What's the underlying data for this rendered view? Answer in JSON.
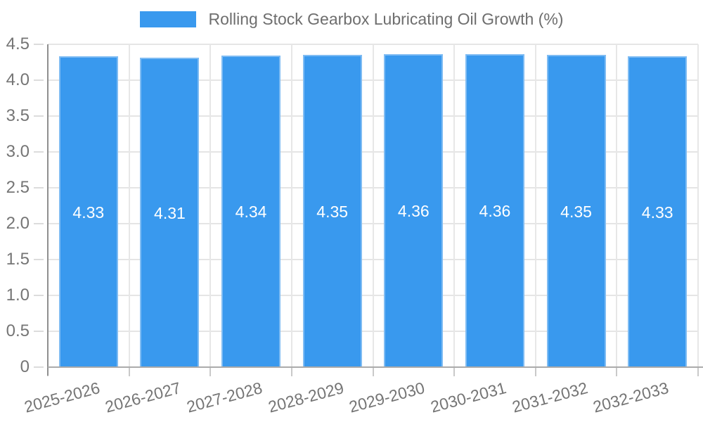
{
  "legend": {
    "label": "Rolling Stock Gearbox Lubricating Oil Growth (%)"
  },
  "colors": {
    "bar_fill": "#3999EE",
    "bar_border": "#7FBCF3",
    "gridline": "#E5E5E5",
    "y_axis_line": "#8F8F8F",
    "x_axis_line": "#ABABAB",
    "tick_text": "#757575",
    "legend_text": "#6E6E6E",
    "value_label_text": "#FFFFFF",
    "background": "#FFFFFF"
  },
  "chart_data": {
    "type": "bar",
    "title": "Rolling Stock Gearbox Lubricating Oil Growth (%)",
    "xlabel": "",
    "ylabel": "",
    "categories": [
      "2025-2026",
      "2026-2027",
      "2027-2028",
      "2028-2029",
      "2029-2030",
      "2030-2031",
      "2031-2032",
      "2032-2033"
    ],
    "values": [
      4.33,
      4.31,
      4.34,
      4.35,
      4.36,
      4.36,
      4.35,
      4.33
    ],
    "value_labels": [
      "4.33",
      "4.31",
      "4.34",
      "4.35",
      "4.36",
      "4.36",
      "4.35",
      "4.33"
    ],
    "ylim": [
      0,
      4.5
    ],
    "y_ticks": [
      0,
      0.5,
      1.0,
      1.5,
      2.0,
      2.5,
      3.0,
      3.5,
      4.0,
      4.5
    ],
    "y_tick_labels": [
      "0",
      "0.5",
      "1.0",
      "1.5",
      "2.0",
      "2.5",
      "3.0",
      "3.5",
      "4.0",
      "4.5"
    ],
    "grid": true,
    "legend_position": "top",
    "x_label_rotation_deg": -15
  }
}
